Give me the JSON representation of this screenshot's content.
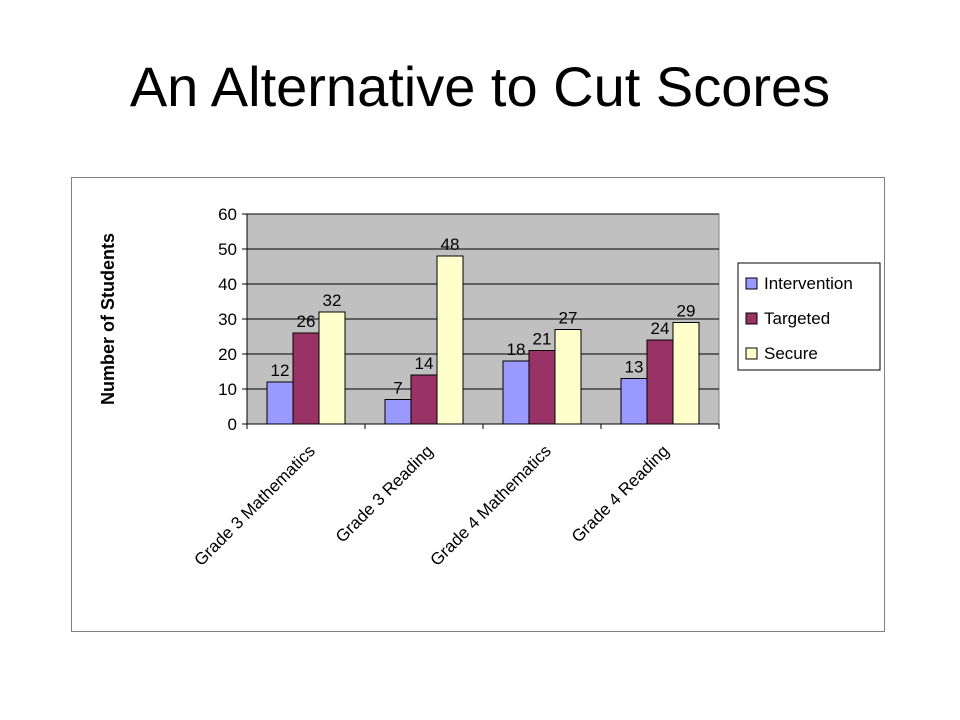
{
  "slide": {
    "title": "An Alternative to Cut Scores"
  },
  "chart_data": {
    "type": "bar",
    "categories": [
      "Grade 3 Mathematics",
      "Grade 3 Reading",
      "Grade 4 Mathematics",
      "Grade 4 Reading"
    ],
    "series": [
      {
        "name": "Intervention",
        "values": [
          12,
          7,
          18,
          13
        ],
        "labels": [
          "12",
          "7",
          "18",
          "13"
        ],
        "color": "#9999ff"
      },
      {
        "name": "Targeted",
        "values": [
          26,
          14,
          21,
          24
        ],
        "labels": [
          "26",
          "14",
          "21",
          "24"
        ],
        "color": "#993366"
      },
      {
        "name": "Secure",
        "values": [
          32,
          48,
          27,
          29
        ],
        "labels": [
          "32",
          "48",
          "27",
          "29"
        ],
        "color": "#ffffcc"
      }
    ],
    "ylabel": "Number of Students",
    "ylim": [
      0,
      60
    ],
    "yticks": [
      0,
      10,
      20,
      30,
      40,
      50,
      60
    ],
    "yticklabels": [
      "0",
      "10",
      "20",
      "30",
      "40",
      "50",
      "60"
    ],
    "plot_background": "#c0c0c0",
    "grid": true,
    "legend_position": "right"
  }
}
